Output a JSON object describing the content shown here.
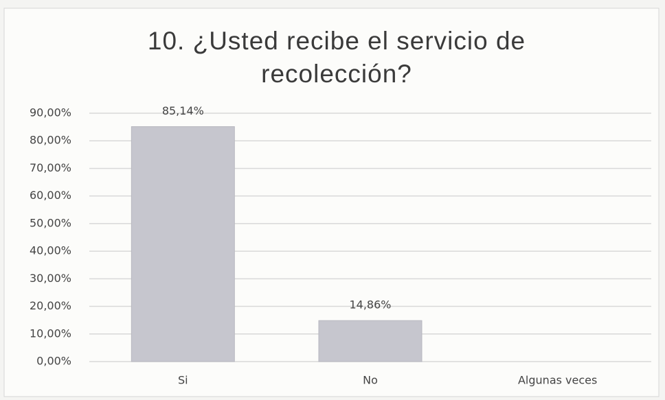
{
  "chart_data": {
    "type": "bar",
    "title": "10. ¿Usted recibe el servicio de recolección?",
    "categories": [
      "Si",
      "No",
      "Algunas veces"
    ],
    "values": [
      85.14,
      14.86,
      0
    ],
    "value_labels": [
      "85,14%",
      "14,86%",
      null
    ],
    "color": "#c6c6ce",
    "ylim": [
      0,
      90
    ],
    "yticks": [
      {
        "value": 0,
        "label": "0,00%"
      },
      {
        "value": 10,
        "label": "10,00%"
      },
      {
        "value": 20,
        "label": "20,00%"
      },
      {
        "value": 30,
        "label": "30,00%"
      },
      {
        "value": 40,
        "label": "40,00%"
      },
      {
        "value": 50,
        "label": "50,00%"
      },
      {
        "value": 60,
        "label": "60,00%"
      },
      {
        "value": 70,
        "label": "70,00%"
      },
      {
        "value": 80,
        "label": "80,00%"
      },
      {
        "value": 90,
        "label": "90,00%"
      }
    ],
    "grid": true
  }
}
